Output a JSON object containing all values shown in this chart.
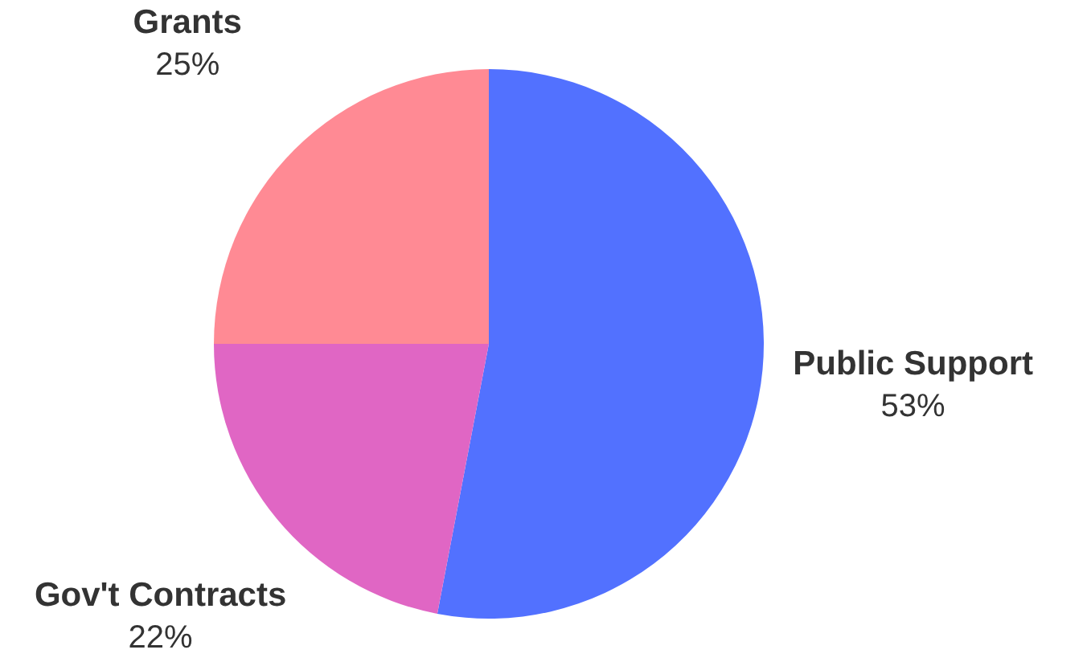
{
  "chart_data": {
    "type": "pie",
    "categories": [
      "Public Support",
      "Gov't Contracts",
      "Grants"
    ],
    "values": [
      53,
      22,
      25
    ],
    "colors": [
      "#5271ff",
      "#e066c4",
      "#ff8a94"
    ],
    "value_labels": [
      "53%",
      "22%",
      "25%"
    ]
  }
}
